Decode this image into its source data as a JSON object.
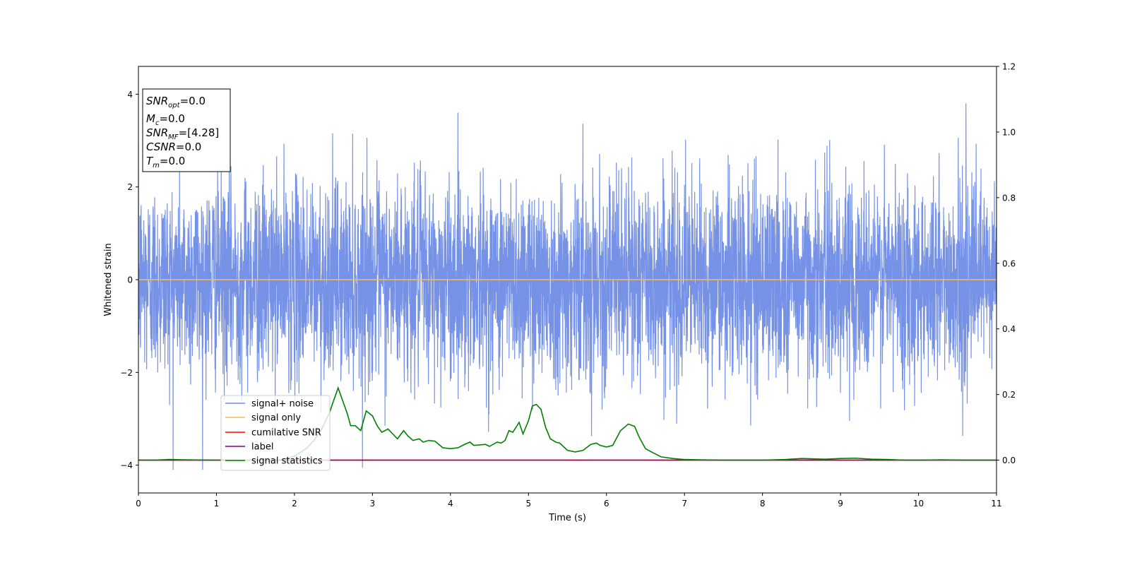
{
  "chart_data": {
    "type": "line",
    "xlabel": "Time (s)",
    "ylabel": "Whitened strain",
    "xlim": [
      0,
      11
    ],
    "ylim": [
      -4.6,
      4.6
    ],
    "y2lim": [
      -0.1,
      1.2
    ],
    "x_ticks": [
      "0",
      "1",
      "2",
      "3",
      "4",
      "5",
      "6",
      "7",
      "8",
      "9",
      "10",
      "11"
    ],
    "y_ticks": [
      "4",
      "2",
      "0",
      "−2",
      "−4"
    ],
    "y2_ticks": [
      "1.2",
      "1.0",
      "0.8",
      "0.6",
      "0.4",
      "0.2",
      "0.0"
    ],
    "grid": false,
    "legend_position": "lower-left",
    "info_box": {
      "lines": [
        {
          "name": "SNR",
          "sub": "opt",
          "value": "=0.0"
        },
        {
          "name": "M",
          "sub": "c",
          "value": "=0.0"
        },
        {
          "name": "SNR",
          "sub": "MF",
          "value": "=[4.28]"
        },
        {
          "name": "CSNR",
          "sub": "",
          "value": "=0.0"
        },
        {
          "name": "T",
          "sub": "m",
          "value": "=0.0"
        }
      ]
    },
    "series": [
      {
        "name": "signal+ noise",
        "color": "#6f8ce6",
        "axis": "left",
        "description": "whitened noise, amplitude roughly ±2 with spikes to about ±4.2"
      },
      {
        "name": "signal only",
        "color": "#f5b95f",
        "axis": "left",
        "values_constant": 0.0
      },
      {
        "name": "cumilative SNR",
        "color": "#ff0000",
        "axis": "right",
        "values_constant": 0.0
      },
      {
        "name": "label",
        "color": "#800080",
        "axis": "right",
        "values_constant": 0.0
      },
      {
        "name": "signal statistics",
        "color": "#008000",
        "axis": "right",
        "x": [
          0,
          0.2,
          0.4,
          0.6,
          1.0,
          1.4,
          1.8,
          2.0,
          2.15,
          2.25,
          2.35,
          2.45,
          2.5,
          2.56,
          2.62,
          2.68,
          2.72,
          2.78,
          2.85,
          2.92,
          3.0,
          3.06,
          3.12,
          3.2,
          3.26,
          3.32,
          3.4,
          3.45,
          3.52,
          3.6,
          3.65,
          3.72,
          3.8,
          3.9,
          4.0,
          4.1,
          4.18,
          4.25,
          4.3,
          4.45,
          4.5,
          4.6,
          4.65,
          4.7,
          4.75,
          4.8,
          4.88,
          4.93,
          5.0,
          5.05,
          5.1,
          5.16,
          5.22,
          5.28,
          5.35,
          5.4,
          5.5,
          5.6,
          5.7,
          5.8,
          5.87,
          5.92,
          6.0,
          6.08,
          6.18,
          6.28,
          6.36,
          6.42,
          6.5,
          6.6,
          6.7,
          6.85,
          7.0,
          7.2,
          7.5,
          8.0,
          8.3,
          8.5,
          8.8,
          9.0,
          9.2,
          9.4,
          9.6,
          9.8,
          10.0,
          10.3,
          10.6,
          11.0
        ],
        "values": [
          0.0,
          0.0,
          0.002,
          0.001,
          0.0,
          0.0,
          0.0,
          0.012,
          0.035,
          0.06,
          0.095,
          0.145,
          0.18,
          0.22,
          0.18,
          0.14,
          0.105,
          0.105,
          0.09,
          0.15,
          0.135,
          0.105,
          0.085,
          0.095,
          0.08,
          0.065,
          0.09,
          0.075,
          0.06,
          0.065,
          0.055,
          0.06,
          0.058,
          0.038,
          0.035,
          0.038,
          0.048,
          0.055,
          0.045,
          0.048,
          0.042,
          0.055,
          0.052,
          0.06,
          0.09,
          0.085,
          0.115,
          0.08,
          0.12,
          0.165,
          0.17,
          0.155,
          0.1,
          0.065,
          0.055,
          0.052,
          0.03,
          0.025,
          0.03,
          0.048,
          0.052,
          0.045,
          0.04,
          0.045,
          0.09,
          0.11,
          0.103,
          0.07,
          0.035,
          0.022,
          0.01,
          0.005,
          0.002,
          0.001,
          0.0,
          0.0,
          0.002,
          0.005,
          0.003,
          0.005,
          0.006,
          0.003,
          0.002,
          0.0,
          0.0,
          0.001,
          0.0,
          0.0
        ]
      }
    ]
  }
}
